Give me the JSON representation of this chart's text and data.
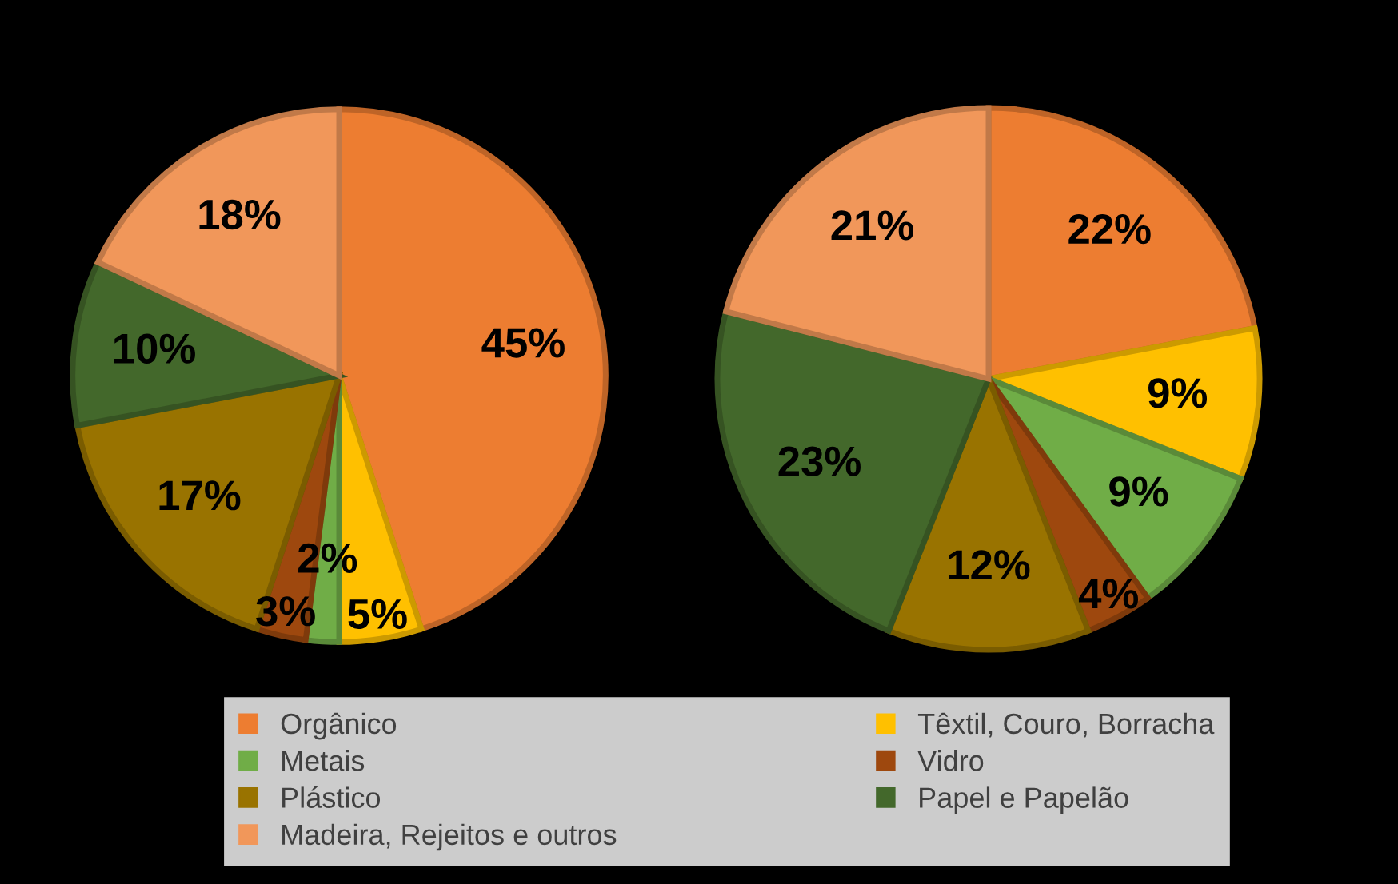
{
  "chart_data": [
    {
      "type": "pie",
      "categories": [
        "Orgânico",
        "Têxtil, Couro, Borracha",
        "Metais",
        "Vidro",
        "Plástico",
        "Papel e Papelão",
        "Madeira, Rejeitos e outros"
      ],
      "values": [
        45,
        5,
        2,
        3,
        17,
        10,
        18
      ],
      "value_labels": [
        "45%",
        "5%",
        "2%",
        "3%",
        "17%",
        "10%",
        "18%"
      ],
      "colors": [
        "#ed7d31",
        "#ffc000",
        "#70ad47",
        "#9e480e",
        "#997300",
        "#43682b",
        "#f1975a"
      ],
      "legend": "bottom"
    },
    {
      "type": "pie",
      "categories": [
        null,
        null,
        null,
        null,
        null,
        null,
        null
      ],
      "values": [
        22,
        9,
        9,
        4,
        12,
        23,
        21
      ],
      "value_labels": [
        "22%",
        "9%",
        "9%",
        "4%",
        "12%",
        "23%",
        "21%"
      ],
      "colors": [
        "#ed7d31",
        "#ffc000",
        "#70ad47",
        "#9e480e",
        "#997300",
        "#43682b",
        "#f1975a"
      ]
    }
  ]
}
